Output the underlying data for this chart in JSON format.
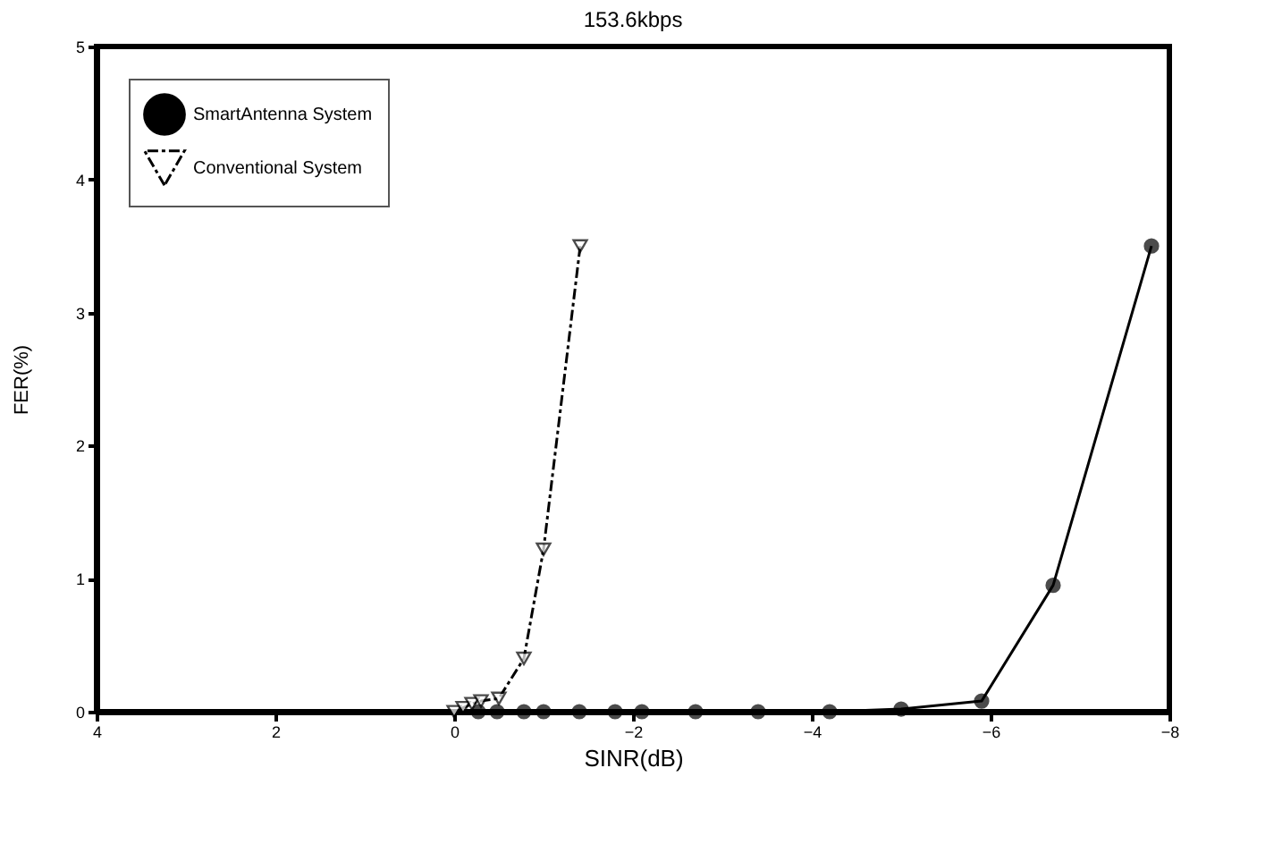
{
  "chart_data": {
    "type": "line",
    "title": "153.6kbps",
    "xlabel": "SINR(dB)",
    "ylabel": "FER(%)",
    "xlim": [
      4,
      -8
    ],
    "xticks": [
      4,
      2,
      0,
      -2,
      -4,
      -6,
      -8
    ],
    "ylim": [
      0,
      5
    ],
    "yticks": [
      0,
      1,
      2,
      3,
      4,
      5
    ],
    "grid": false,
    "legend": "top left",
    "series": [
      {
        "name": "SmartAntenna System",
        "color": "#000000",
        "marker": "circle",
        "line_style": "solid",
        "x": [
          -0.27,
          -0.48,
          -0.78,
          -1.0,
          -1.4,
          -1.8,
          -2.1,
          -2.7,
          -3.4,
          -4.2,
          -5.0,
          -5.9,
          -6.7,
          -7.8
        ],
        "values": [
          0,
          0,
          0,
          0,
          0,
          0,
          0,
          0,
          0,
          0,
          0.02,
          0.08,
          0.95,
          3.5
        ]
      },
      {
        "name": "Conventional System",
        "color": "#000000",
        "marker": "triangle",
        "line_style": "dashed",
        "x": [
          0,
          -0.1,
          -0.2,
          -0.3,
          -0.5,
          -0.78,
          -1.0,
          -1.41
        ],
        "values": [
          0,
          0.03,
          0.06,
          0.08,
          0.1,
          0.4,
          1.22,
          3.5
        ]
      }
    ]
  }
}
